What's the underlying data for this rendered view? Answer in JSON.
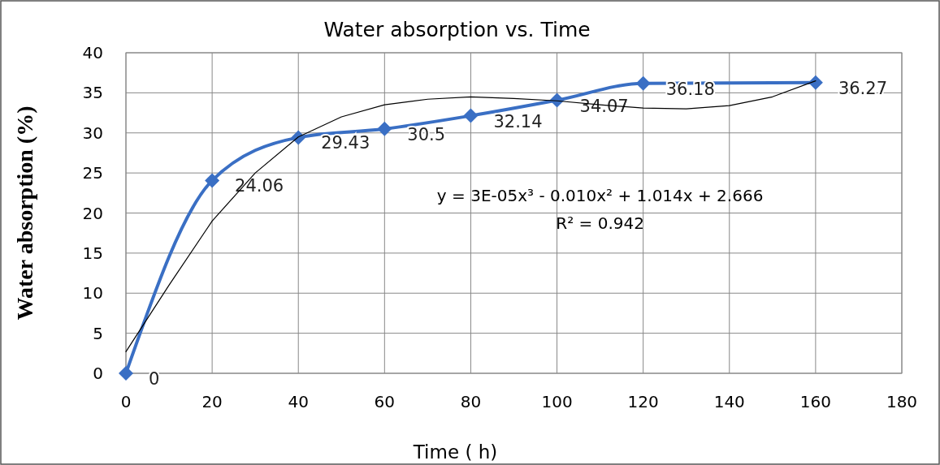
{
  "chart_data": {
    "type": "line",
    "title": "Water absorption vs. Time",
    "xlabel": "Time ( h)",
    "ylabel": "Water absorption (%)",
    "xlim": [
      0,
      180
    ],
    "xticks": [
      0,
      20,
      40,
      60,
      80,
      100,
      120,
      140,
      160,
      180
    ],
    "ylim": [
      0,
      40
    ],
    "yticks": [
      0,
      5,
      10,
      15,
      20,
      25,
      30,
      35,
      40
    ],
    "grid": true,
    "series": [
      {
        "color": "#3a6fc4",
        "marker": "diamond",
        "line_style": "solid",
        "data_labels": true,
        "x": [
          0,
          20,
          40,
          60,
          80,
          100,
          120,
          160
        ],
        "values": [
          0,
          24.06,
          29.43,
          30.5,
          32.14,
          34.07,
          36.18,
          36.27
        ]
      },
      {
        "color": "#000000",
        "marker": "none",
        "line_style": "solid",
        "x": [
          0,
          10,
          20,
          30,
          40,
          50,
          60,
          70,
          80,
          90,
          100,
          110,
          120,
          130,
          140,
          150,
          160
        ],
        "values": [
          2.7,
          11,
          19,
          25,
          29.5,
          32,
          33.5,
          34.2,
          34.5,
          34.3,
          34,
          33.5,
          33.1,
          33,
          33.4,
          34.5,
          36.5
        ]
      }
    ],
    "annotations": [
      "y = 3E-05x³ - 0.010x² + 1.014x + 2.666",
      "R² = 0.942"
    ]
  }
}
